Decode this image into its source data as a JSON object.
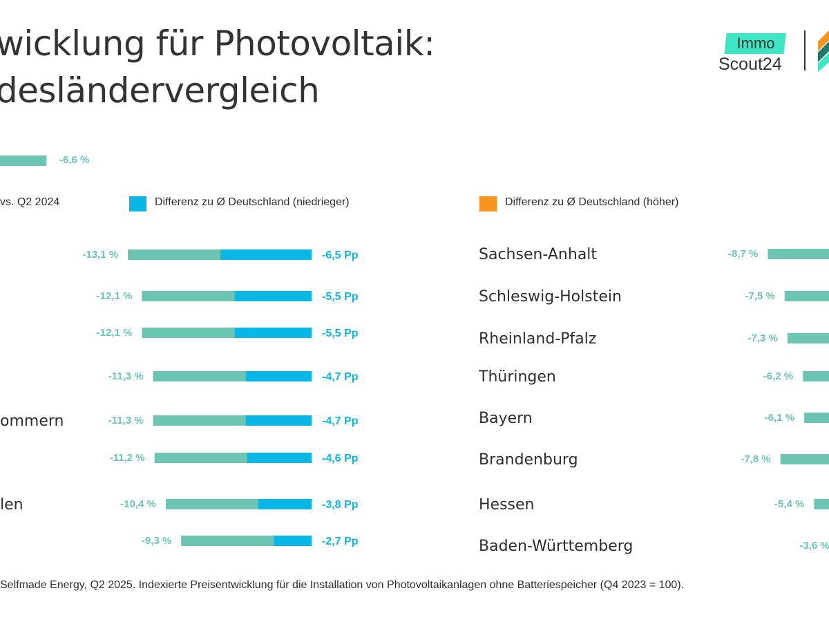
{
  "title": {
    "line1": "wicklung für Photovoltaik:",
    "line2": "desländervergleich"
  },
  "logo": {
    "immo": "Immo",
    "scout": "Scout24"
  },
  "average": {
    "label": "-6,6 %",
    "value": -6.6
  },
  "legend": {
    "series_label": "vs. Q2 2024",
    "lower_label": "Differenz zu Ø Deutschland (niedrieger)",
    "higher_label": "Differenz zu Ø Deutschland (höher)"
  },
  "colors": {
    "change": "#6cc5b3",
    "lower": "#08b7e6",
    "higher": "#f7941d",
    "text": "#2e2e2e"
  },
  "chart_data": [
    {
      "type": "bar",
      "orientation": "horizontal",
      "average": -6.6,
      "rows": [
        {
          "state": "",
          "change": -13.1,
          "change_label": "-13,1 %",
          "diff": -6.5,
          "diff_label": "-6,5 Pp"
        },
        {
          "state": "",
          "change": -12.1,
          "change_label": "-12,1 %",
          "diff": -5.5,
          "diff_label": "-5,5 Pp"
        },
        {
          "state": "",
          "change": -12.1,
          "change_label": "-12,1 %",
          "diff": -5.5,
          "diff_label": "-5,5 Pp"
        },
        {
          "state": "",
          "change": -11.3,
          "change_label": "-11,3 %",
          "diff": -4.7,
          "diff_label": "-4,7 Pp"
        },
        {
          "state": "ommern",
          "change": -11.3,
          "change_label": "-11,3 %",
          "diff": -4.7,
          "diff_label": "-4,7 Pp"
        },
        {
          "state": "",
          "change": -11.2,
          "change_label": "-11,2 %",
          "diff": -4.6,
          "diff_label": "-4,6 Pp"
        },
        {
          "state": "len",
          "change": -10.4,
          "change_label": "-10,4 %",
          "diff": -3.8,
          "diff_label": "-3,8 Pp"
        },
        {
          "state": "",
          "change": -9.3,
          "change_label": "-9,3 %",
          "diff": -2.7,
          "diff_label": "-2,7 Pp"
        }
      ]
    },
    {
      "type": "bar",
      "orientation": "horizontal",
      "average": -6.6,
      "rows": [
        {
          "state": "Sachsen-Anhalt",
          "change": -8.7,
          "change_label": "-8,7 %"
        },
        {
          "state": "Schleswig-Holstein",
          "change": -7.5,
          "change_label": "-7,5 %"
        },
        {
          "state": "Rheinland-Pfalz",
          "change": -7.3,
          "change_label": "-7,3 %"
        },
        {
          "state": "Thüringen",
          "change": -6.2,
          "change_label": "-6,2 %"
        },
        {
          "state": "Bayern",
          "change": -6.1,
          "change_label": "-6,1 %"
        },
        {
          "state": "Brandenburg",
          "change": -7.8,
          "change_label": "-7,8 %"
        },
        {
          "state": "Hessen",
          "change": -5.4,
          "change_label": "-5,4 %"
        },
        {
          "state": "Baden-Württemberg",
          "change": -3.6,
          "change_label": "-3,6 %"
        }
      ]
    }
  ],
  "footer": "Selfmade Energy, Q2 2025. Indexierte Preisentwicklung für die Installation von Photovoltaikanlagen ohne Batteriespeicher (Q4 2023 = 100)."
}
